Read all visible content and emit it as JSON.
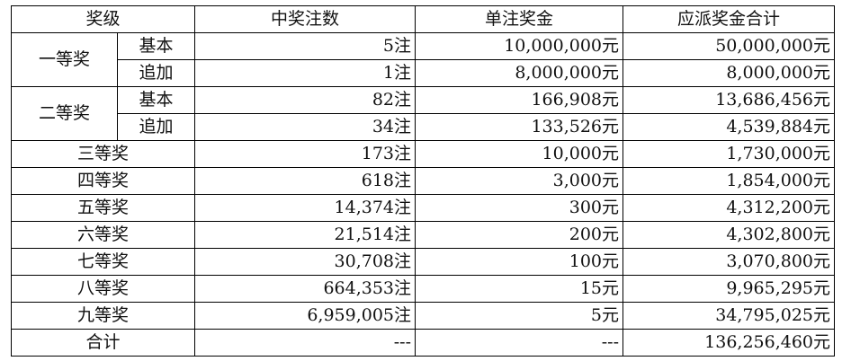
{
  "headers": {
    "level": "奖级",
    "winners": "中奖注数",
    "unit_prize": "单注奖金",
    "total_payout": "应派奖金合计"
  },
  "rows": [
    {
      "level": "一等奖",
      "sub": "基本",
      "winners": "5注",
      "unit_prize": "10,000,000元",
      "total": "50,000,000元"
    },
    {
      "level": "",
      "sub": "追加",
      "winners": "1注",
      "unit_prize": "8,000,000元",
      "total": "8,000,000元"
    },
    {
      "level": "二等奖",
      "sub": "基本",
      "winners": "82注",
      "unit_prize": "166,908元",
      "total": "13,686,456元"
    },
    {
      "level": "",
      "sub": "追加",
      "winners": "34注",
      "unit_prize": "133,526元",
      "total": "4,539,884元"
    },
    {
      "level": "三等奖",
      "winners": "173注",
      "unit_prize": "10,000元",
      "total": "1,730,000元"
    },
    {
      "level": "四等奖",
      "winners": "618注",
      "unit_prize": "3,000元",
      "total": "1,854,000元"
    },
    {
      "level": "五等奖",
      "winners": "14,374注",
      "unit_prize": "300元",
      "total": "4,312,200元"
    },
    {
      "level": "六等奖",
      "winners": "21,514注",
      "unit_prize": "200元",
      "total": "4,302,800元"
    },
    {
      "level": "七等奖",
      "winners": "30,708注",
      "unit_prize": "100元",
      "total": "3,070,800元"
    },
    {
      "level": "八等奖",
      "winners": "664,353注",
      "unit_prize": "15元",
      "total": "9,965,295元"
    },
    {
      "level": "九等奖",
      "winners": "6,959,005注",
      "unit_prize": "5元",
      "total": "34,795,025元"
    },
    {
      "level": "合计",
      "winners": "---",
      "unit_prize": "---",
      "total": "136,256,460元"
    }
  ]
}
